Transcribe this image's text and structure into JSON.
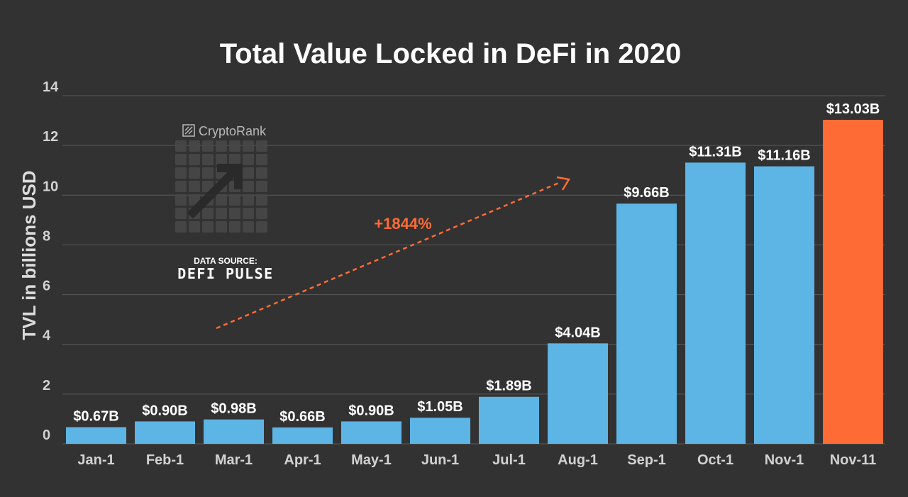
{
  "chart_data": {
    "type": "bar",
    "title": "Total Value Locked in DeFi in 2020",
    "xlabel": "",
    "ylabel": "TVL in billions USD",
    "ylim": [
      0,
      14
    ],
    "yticks": [
      0,
      2,
      4,
      6,
      8,
      10,
      12,
      14
    ],
    "grid": true,
    "categories": [
      "Jan-1",
      "Feb-1",
      "Mar-1",
      "Apr-1",
      "May-1",
      "Jun-1",
      "Jul-1",
      "Aug-1",
      "Sep-1",
      "Oct-1",
      "Nov-1",
      "Nov-11"
    ],
    "values": [
      0.67,
      0.9,
      0.98,
      0.66,
      0.9,
      1.05,
      1.89,
      4.04,
      9.66,
      11.31,
      11.16,
      13.03
    ],
    "value_labels": [
      "$0.67B",
      "$0.90B",
      "$0.98B",
      "$0.66B",
      "$0.90B",
      "$1.05B",
      "$1.89B",
      "$4.04B",
      "$9.66B",
      "$11.31B",
      "$11.16B",
      "$13.03B"
    ],
    "colors": {
      "default_bar": "#5db5e6",
      "highlight_bar": "#ff6b35",
      "highlight_index": 11
    },
    "annotation": {
      "text": "+1844%",
      "color": "#ff6b35"
    }
  },
  "watermark": {
    "brand": "CryptoRank",
    "logo_icon": "cryptorank-logo-icon"
  },
  "source": {
    "label": "DATA SOURCE:",
    "name": "DEFI PULSE"
  }
}
